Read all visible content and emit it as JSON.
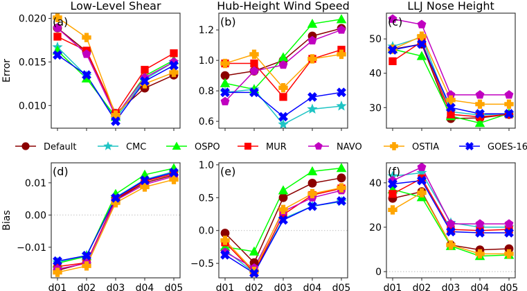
{
  "figure": {
    "legend": {
      "placement": "center-between-rows",
      "entries": [
        {
          "name": "Default",
          "color": "#8b0000",
          "marker": "circle"
        },
        {
          "name": "CMC",
          "color": "#1fc4c4",
          "marker": "star"
        },
        {
          "name": "OSPO",
          "color": "#00ff00",
          "marker": "triangle"
        },
        {
          "name": "MUR",
          "color": "#ff0000",
          "marker": "square"
        },
        {
          "name": "NAVO",
          "color": "#c000c0",
          "marker": "pentagon"
        },
        {
          "name": "OSTIA",
          "color": "#ffa500",
          "marker": "plus"
        },
        {
          "name": "GOES-16",
          "color": "#0000ff",
          "marker": "x"
        }
      ]
    }
  },
  "chart_data": [
    {
      "id": "a",
      "type": "line",
      "title": "Low-Level Shear",
      "panel_label": "(a)",
      "xlabel": "",
      "ylabel": "Error",
      "categories": [
        "d01",
        "d02",
        "d03",
        "d04",
        "d05"
      ],
      "show_xticklabels": false,
      "ylim": [
        0.0074,
        0.0206
      ],
      "yticks": [
        0.01,
        0.015,
        0.02
      ],
      "ytick_labels": [
        "0.010",
        "0.015",
        "0.020"
      ],
      "zero_line": false,
      "series": [
        {
          "name": "Default",
          "values": [
            0.0189,
            0.0162,
            0.0091,
            0.012,
            0.0135
          ]
        },
        {
          "name": "CMC",
          "values": [
            0.0167,
            0.0134,
            0.0085,
            0.013,
            0.015
          ]
        },
        {
          "name": "OSPO",
          "values": [
            0.0163,
            0.0131,
            0.0087,
            0.0134,
            0.0152
          ]
        },
        {
          "name": "MUR",
          "values": [
            0.0179,
            0.0163,
            0.0091,
            0.0141,
            0.016
          ]
        },
        {
          "name": "NAVO",
          "values": [
            0.0189,
            0.0159,
            0.0088,
            0.0132,
            0.015
          ]
        },
        {
          "name": "OSTIA",
          "values": [
            0.0201,
            0.0178,
            0.0089,
            0.0125,
            0.0138
          ]
        },
        {
          "name": "GOES-16",
          "values": [
            0.0158,
            0.0135,
            0.0082,
            0.0128,
            0.0146
          ]
        }
      ]
    },
    {
      "id": "b",
      "type": "line",
      "title": "Hub-Height Wind Speed",
      "panel_label": "(b)",
      "xlabel": "",
      "ylabel": "",
      "categories": [
        "d01",
        "d02",
        "d03",
        "d04",
        "d05"
      ],
      "show_xticklabels": false,
      "ylim": [
        0.555,
        1.31
      ],
      "yticks": [
        0.6,
        0.8,
        1.0,
        1.2
      ],
      "ytick_labels": [
        "0.6",
        "0.8",
        "1.0",
        "1.2"
      ],
      "zero_line": false,
      "series": [
        {
          "name": "Default",
          "values": [
            0.9,
            0.93,
            1.0,
            1.16,
            1.21
          ]
        },
        {
          "name": "CMC",
          "values": [
            0.79,
            0.81,
            0.58,
            0.68,
            0.7
          ]
        },
        {
          "name": "OSPO",
          "values": [
            0.85,
            0.81,
            1.02,
            1.24,
            1.27
          ]
        },
        {
          "name": "MUR",
          "values": [
            0.98,
            0.98,
            0.76,
            1.01,
            1.07
          ]
        },
        {
          "name": "NAVO",
          "values": [
            0.73,
            0.93,
            0.97,
            1.13,
            1.2
          ]
        },
        {
          "name": "OSTIA",
          "values": [
            0.98,
            1.04,
            0.82,
            1.01,
            1.04
          ]
        },
        {
          "name": "GOES-16",
          "values": [
            0.79,
            0.79,
            0.63,
            0.76,
            0.79
          ]
        }
      ]
    },
    {
      "id": "c",
      "type": "line",
      "title": "LLJ Nose Height",
      "panel_label": "(c)",
      "xlabel": "",
      "ylabel": "",
      "categories": [
        "d01",
        "d02",
        "d03",
        "d04",
        "d05"
      ],
      "show_xticklabels": false,
      "ylim": [
        24.0,
        57.5
      ],
      "yticks": [
        30,
        40,
        50
      ],
      "ytick_labels": [
        "30",
        "40",
        "50"
      ],
      "zero_line": false,
      "series": [
        {
          "name": "Default",
          "values": [
            47.0,
            48.5,
            26.8,
            27.0,
            28.0
          ]
        },
        {
          "name": "CMC",
          "values": [
            47.8,
            50.5,
            28.8,
            27.8,
            28.2
          ]
        },
        {
          "name": "OSPO",
          "values": [
            47.0,
            45.0,
            27.5,
            25.5,
            28.3
          ]
        },
        {
          "name": "MUR",
          "values": [
            43.5,
            49.2,
            28.0,
            27.3,
            28.0
          ]
        },
        {
          "name": "NAVO",
          "values": [
            55.8,
            54.2,
            33.7,
            33.7,
            33.7
          ]
        },
        {
          "name": "OSTIA",
          "values": [
            47.0,
            50.8,
            32.2,
            31.0,
            31.0
          ]
        },
        {
          "name": "GOES-16",
          "values": [
            46.8,
            48.5,
            30.0,
            28.2,
            28.2
          ]
        }
      ]
    },
    {
      "id": "d",
      "type": "line",
      "title": "",
      "panel_label": "(d)",
      "xlabel": "",
      "ylabel": "Bias",
      "categories": [
        "d01",
        "d02",
        "d03",
        "d04",
        "d05"
      ],
      "show_xticklabels": true,
      "ylim": [
        -0.0195,
        0.0162
      ],
      "yticks": [
        -0.01,
        0.0,
        0.01
      ],
      "ytick_labels": [
        "−0.01",
        "0.00",
        "0.01"
      ],
      "zero_line": true,
      "series": [
        {
          "name": "Default",
          "values": [
            -0.0172,
            -0.0148,
            0.0048,
            0.01,
            0.0124
          ]
        },
        {
          "name": "CMC",
          "values": [
            -0.0147,
            -0.0125,
            0.0055,
            0.011,
            0.0135
          ]
        },
        {
          "name": "OSPO",
          "values": [
            -0.015,
            -0.0128,
            0.0065,
            0.0125,
            0.0145
          ]
        },
        {
          "name": "MUR",
          "values": [
            -0.016,
            -0.0148,
            0.005,
            0.0105,
            0.0128
          ]
        },
        {
          "name": "NAVO",
          "values": [
            -0.0168,
            -0.015,
            0.0045,
            0.0095,
            0.012
          ]
        },
        {
          "name": "OSTIA",
          "values": [
            -0.0178,
            -0.0158,
            0.0038,
            0.0087,
            0.011
          ]
        },
        {
          "name": "GOES-16",
          "values": [
            -0.0143,
            -0.0126,
            0.0053,
            0.0108,
            0.0132
          ]
        }
      ]
    },
    {
      "id": "e",
      "type": "line",
      "title": "",
      "panel_label": "(e)",
      "xlabel": "",
      "ylabel": "",
      "categories": [
        "d01",
        "d02",
        "d03",
        "d04",
        "d05"
      ],
      "show_xticklabels": true,
      "ylim": [
        -0.72,
        1.03
      ],
      "yticks": [
        -0.5,
        0.0,
        0.5,
        1.0
      ],
      "ytick_labels": [
        "−0.5",
        "0.0",
        "0.5",
        "1.0"
      ],
      "zero_line": true,
      "series": [
        {
          "name": "Default",
          "values": [
            -0.04,
            -0.49,
            0.5,
            0.72,
            0.8
          ]
        },
        {
          "name": "CMC",
          "values": [
            -0.3,
            -0.64,
            0.18,
            0.37,
            0.44
          ]
        },
        {
          "name": "OSPO",
          "values": [
            -0.25,
            -0.32,
            0.61,
            0.9,
            0.95
          ]
        },
        {
          "name": "MUR",
          "values": [
            -0.18,
            -0.64,
            0.24,
            0.54,
            0.64
          ]
        },
        {
          "name": "NAVO",
          "values": [
            -0.33,
            -0.57,
            0.29,
            0.5,
            0.61
          ]
        },
        {
          "name": "OSTIA",
          "values": [
            -0.15,
            -0.62,
            0.32,
            0.56,
            0.65
          ]
        },
        {
          "name": "GOES-16",
          "values": [
            -0.37,
            -0.65,
            0.16,
            0.37,
            0.45
          ]
        }
      ]
    },
    {
      "id": "f",
      "type": "line",
      "title": "",
      "panel_label": "(f)",
      "xlabel": "",
      "ylabel": "",
      "categories": [
        "d01",
        "d02",
        "d03",
        "d04",
        "d05"
      ],
      "show_xticklabels": true,
      "ylim": [
        -2.8,
        49.0
      ],
      "yticks": [
        0,
        20,
        40
      ],
      "ytick_labels": [
        "0",
        "20",
        "40"
      ],
      "zero_line": true,
      "series": [
        {
          "name": "Default",
          "values": [
            33.0,
            36.0,
            12.0,
            9.8,
            10.3
          ]
        },
        {
          "name": "CMC",
          "values": [
            43.0,
            44.5,
            22.0,
            20.0,
            20.0
          ]
        },
        {
          "name": "OSPO",
          "values": [
            37.0,
            33.5,
            11.5,
            7.0,
            7.5
          ]
        },
        {
          "name": "MUR",
          "values": [
            35.0,
            42.0,
            19.0,
            18.5,
            19.0
          ]
        },
        {
          "name": "NAVO",
          "values": [
            41.0,
            47.0,
            21.5,
            21.5,
            21.5
          ]
        },
        {
          "name": "OSTIA",
          "values": [
            27.8,
            35.5,
            12.0,
            8.0,
            8.0
          ]
        },
        {
          "name": "GOES-16",
          "values": [
            39.5,
            41.0,
            18.0,
            17.5,
            17.5
          ]
        }
      ]
    }
  ]
}
